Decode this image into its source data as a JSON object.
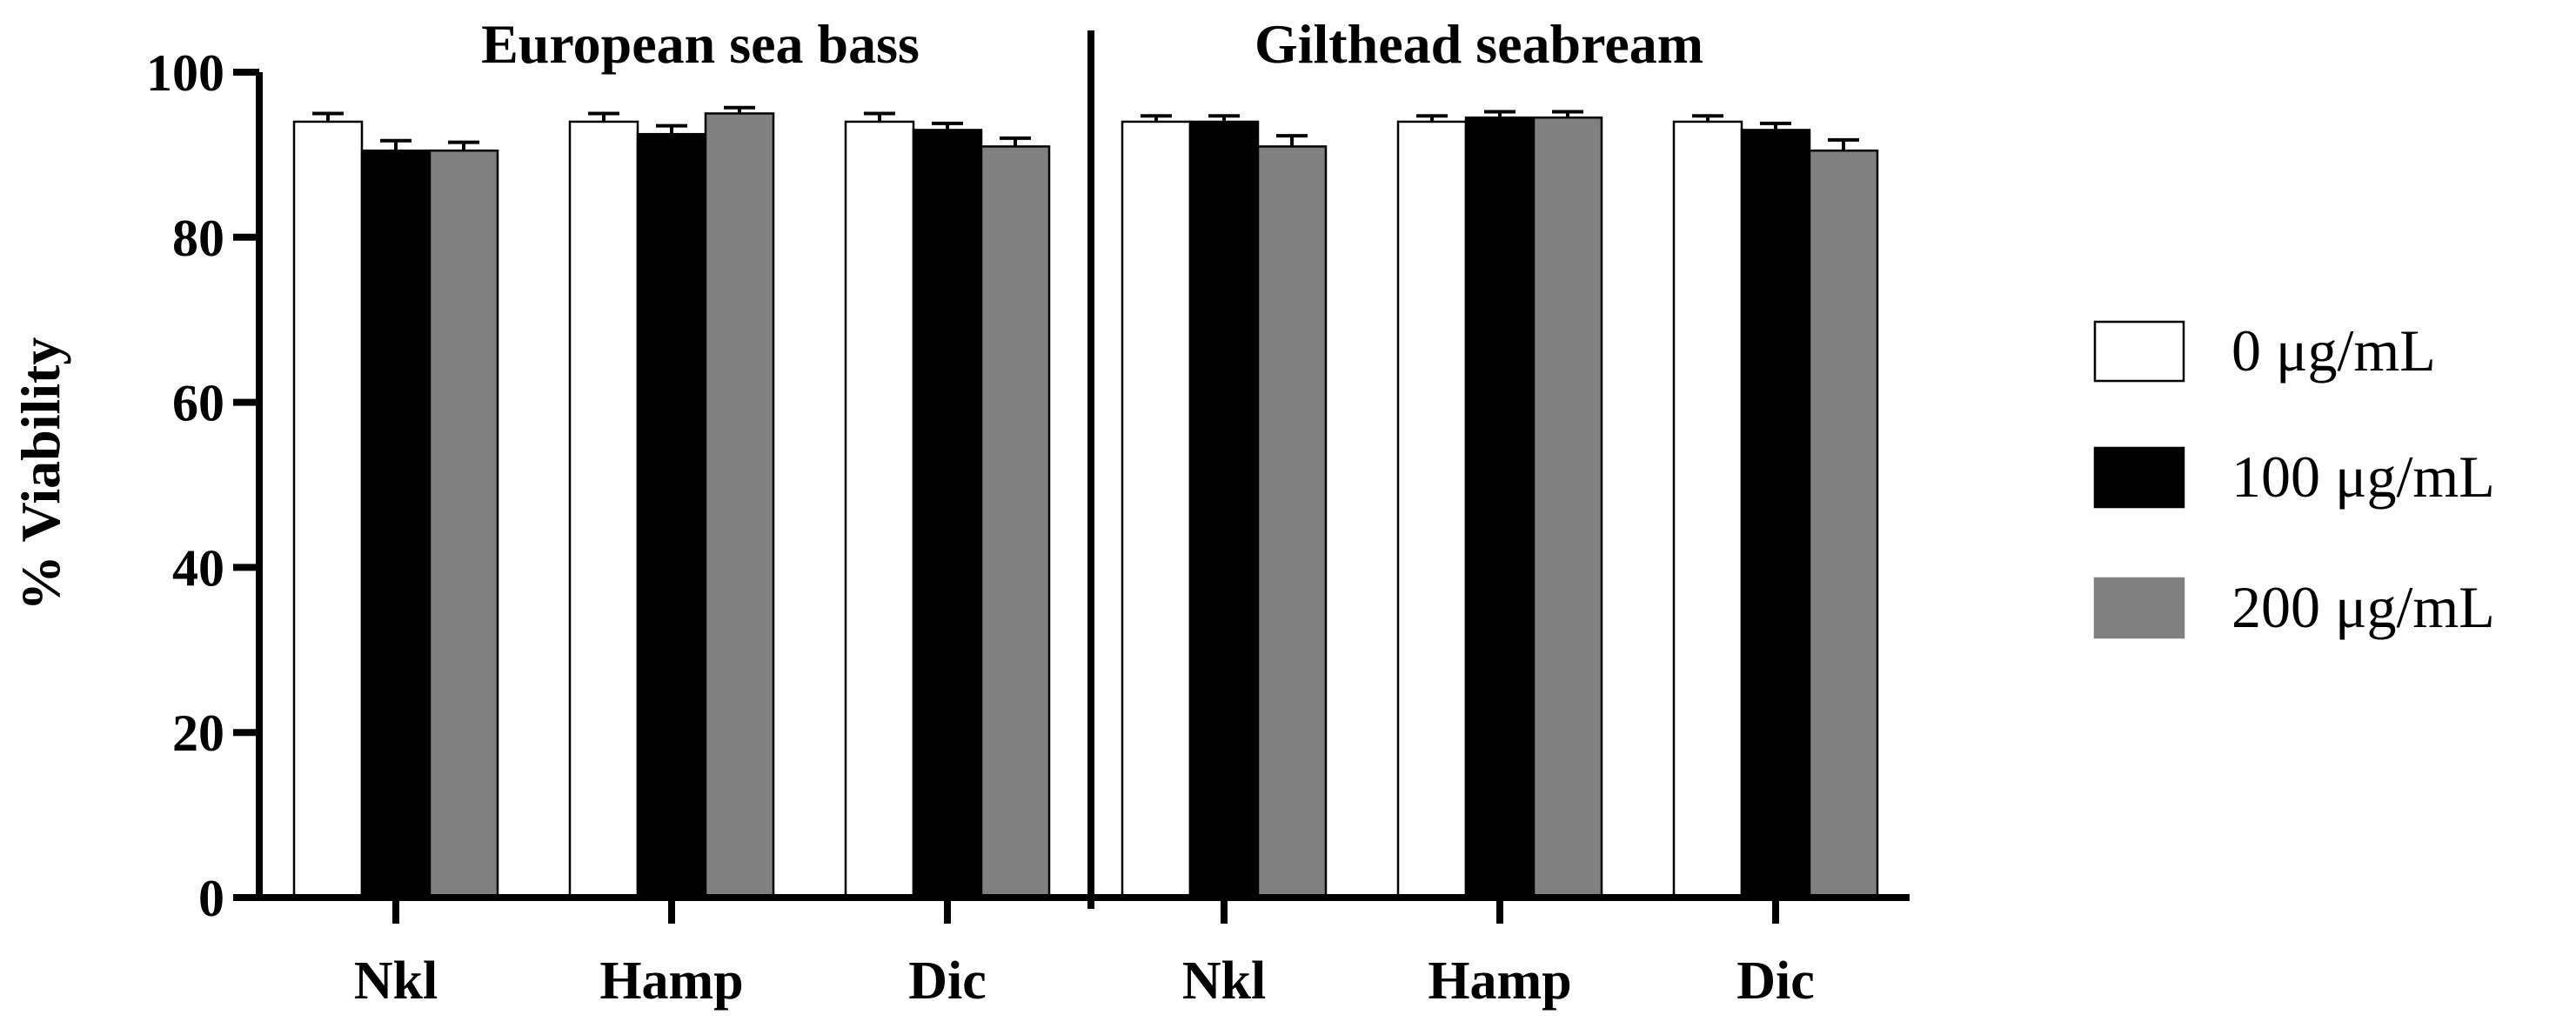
{
  "chart_data": {
    "type": "bar",
    "ylabel": "% Viability",
    "ylim": [
      0,
      100
    ],
    "yticks": [
      "0",
      "20",
      "40",
      "60",
      "80",
      "100"
    ],
    "grid": false,
    "legend_placement": "right",
    "series": [
      {
        "name": "0 μg/mL",
        "color": "#ffffff"
      },
      {
        "name": "100 μg/mL",
        "color": "#000000"
      },
      {
        "name": "200 μg/mL",
        "color": "#808080"
      }
    ],
    "panels": [
      {
        "title": "European sea bass",
        "categories": [
          "Nkl",
          "Hamp",
          "Dic"
        ],
        "values": [
          [
            94,
            90.5,
            90.5
          ],
          [
            94,
            92.5,
            95
          ],
          [
            94,
            93,
            91
          ]
        ],
        "errors": [
          [
            1,
            1.2,
            1
          ],
          [
            1,
            1,
            0.7
          ],
          [
            1,
            0.8,
            1
          ]
        ]
      },
      {
        "title": "Gilthead seabream",
        "categories": [
          "Nkl",
          "Hamp",
          "Dic"
        ],
        "values": [
          [
            94,
            94,
            91
          ],
          [
            94,
            94.5,
            94.5
          ],
          [
            94,
            93,
            90.5
          ]
        ],
        "errors": [
          [
            0.7,
            0.7,
            1.3
          ],
          [
            0.7,
            0.7,
            0.7
          ],
          [
            0.7,
            0.8,
            1.3
          ]
        ]
      }
    ]
  }
}
